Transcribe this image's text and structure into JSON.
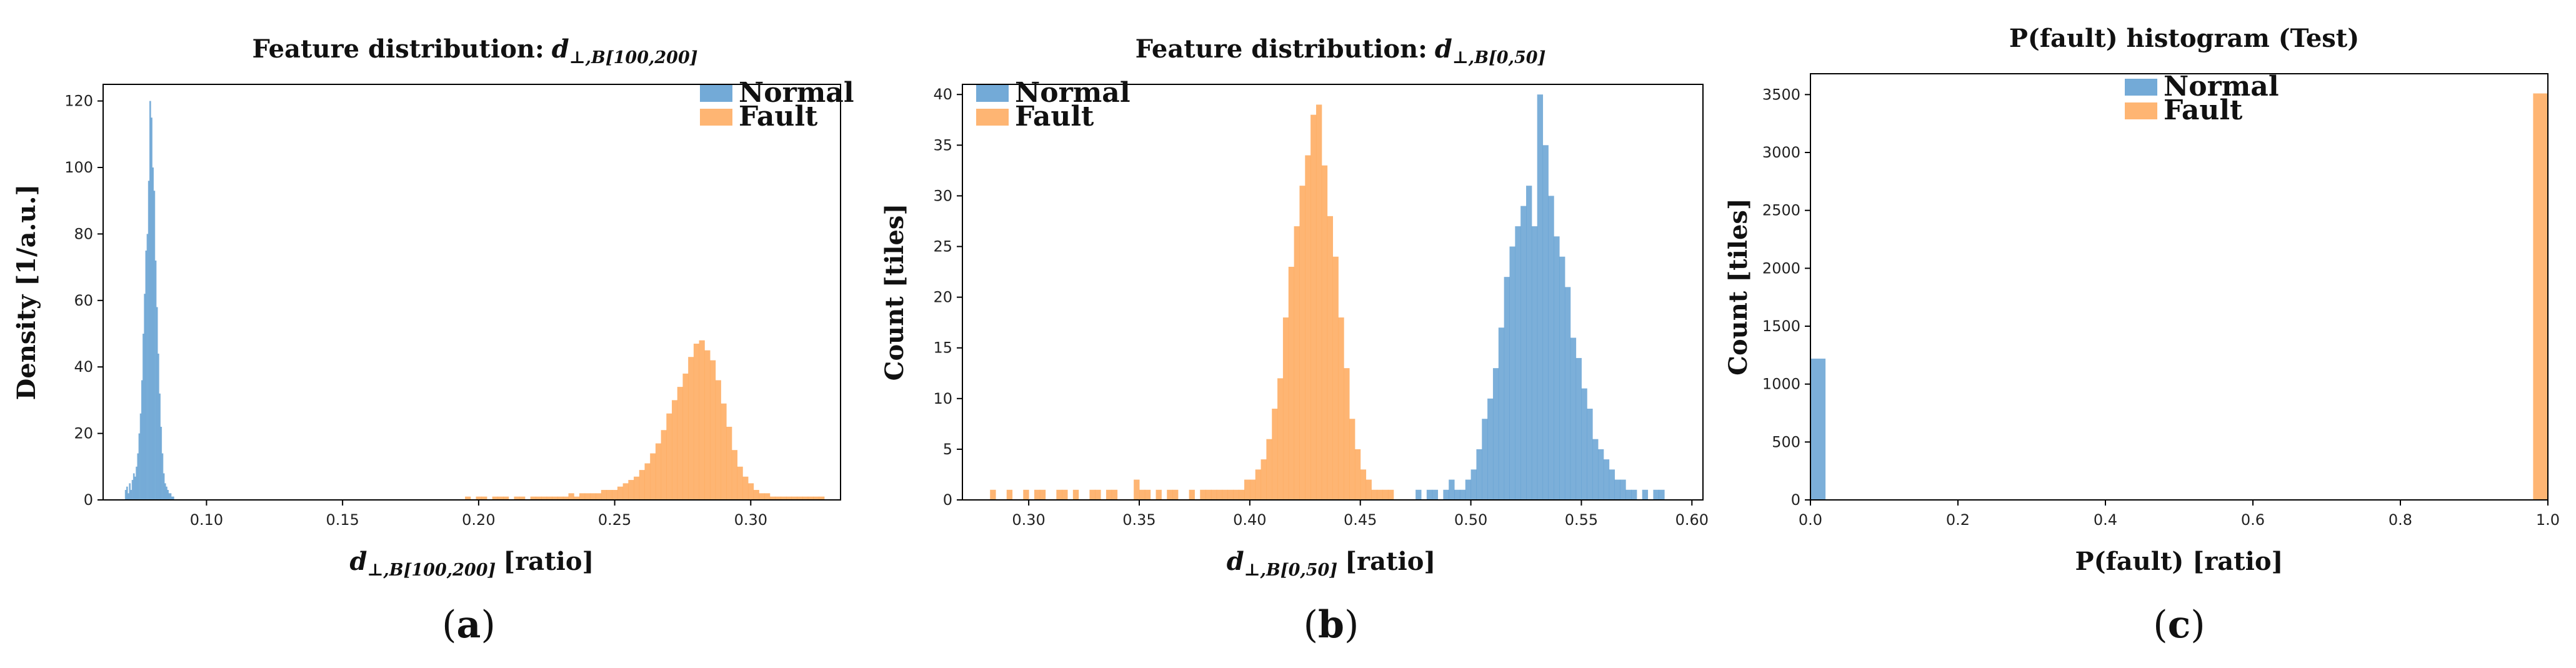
{
  "colors": {
    "normal": "#5b9bd0",
    "fault": "#fea85a",
    "normal_alpha": 0.8,
    "fault_alpha": 0.85
  },
  "chart_data": [
    {
      "type": "bar",
      "panel": "a",
      "title": "Feature distribution: d⊥,B[100,200]",
      "title_prefix": "Feature distribution:",
      "title_symbol": "d",
      "title_subscript": "⊥,B[100,200]",
      "xlabel": "d⊥,B[100,200] [ratio]",
      "xlabel_symbol": "d",
      "xlabel_subscript": "⊥,B[100,200]",
      "xlabel_suffix": "[ratio]",
      "ylabel": "Density [1/a.u.]",
      "caption_letter": "a",
      "xlim": [
        0.062,
        0.333
      ],
      "ylim": [
        0,
        125
      ],
      "xticks": [
        0.1,
        0.15,
        0.2,
        0.25,
        0.3
      ],
      "xtick_labels": [
        "0.10",
        "0.15",
        "0.20",
        "0.25",
        "0.30"
      ],
      "yticks": [
        0,
        20,
        40,
        60,
        80,
        100,
        120
      ],
      "ytick_labels": [
        "0",
        "20",
        "40",
        "60",
        "80",
        "100",
        "120"
      ],
      "legend_position": "top-right",
      "series": [
        {
          "name": "Normal",
          "color": "#5b9bd0",
          "bins": {
            "start": 0.07,
            "width": 0.0005
          },
          "values": [
            3,
            4,
            2,
            5,
            3,
            6,
            8,
            7,
            10,
            14,
            20,
            26,
            36,
            50,
            62,
            75,
            80,
            96,
            120,
            115,
            100,
            93,
            72,
            58,
            44,
            32,
            22,
            14,
            8,
            5,
            4,
            3,
            2,
            2,
            1,
            1
          ]
        },
        {
          "name": "Fault",
          "color": "#fea85a",
          "bins": {
            "start": 0.195,
            "width": 0.002
          },
          "values": [
            1,
            0,
            1,
            1,
            0,
            1,
            1,
            1,
            0,
            1,
            1,
            0,
            1,
            1,
            1,
            1,
            1,
            1,
            1,
            2,
            1,
            2,
            2,
            2,
            2,
            3,
            3,
            3,
            4,
            5,
            6,
            7,
            9,
            11,
            14,
            17,
            21,
            26,
            30,
            34,
            38,
            43,
            47,
            48,
            45,
            42,
            36,
            29,
            22,
            15,
            10,
            7,
            5,
            3,
            2,
            2,
            1,
            1,
            1,
            1,
            1,
            1,
            1,
            1,
            1,
            1
          ]
        }
      ]
    },
    {
      "type": "bar",
      "panel": "b",
      "title": "Feature distribution: d⊥,B[0,50]",
      "title_prefix": "Feature distribution:",
      "title_symbol": "d",
      "title_subscript": "⊥,B[0,50]",
      "xlabel": "d⊥,B[0,50] [ratio]",
      "xlabel_symbol": "d",
      "xlabel_subscript": "⊥,B[0,50]",
      "xlabel_suffix": "[ratio]",
      "ylabel": "Count [tiles]",
      "caption_letter": "b",
      "xlim": [
        0.27,
        0.605
      ],
      "ylim": [
        0,
        41
      ],
      "xticks": [
        0.3,
        0.35,
        0.4,
        0.45,
        0.5,
        0.55,
        0.6
      ],
      "xtick_labels": [
        "0.30",
        "0.35",
        "0.40",
        "0.45",
        "0.50",
        "0.55",
        "0.60"
      ],
      "yticks": [
        0,
        5,
        10,
        15,
        20,
        25,
        30,
        35,
        40
      ],
      "ytick_labels": [
        "0",
        "5",
        "10",
        "15",
        "20",
        "25",
        "30",
        "35",
        "40"
      ],
      "legend_position": "top-left",
      "series": [
        {
          "name": "Normal",
          "color": "#5b9bd0",
          "bins": {
            "start": 0.475,
            "width": 0.0025
          },
          "values": [
            1,
            0,
            1,
            1,
            0,
            1,
            2,
            1,
            1,
            2,
            3,
            5,
            8,
            10,
            13,
            17,
            22,
            25,
            27,
            29,
            31,
            27,
            40,
            35,
            30,
            26,
            24,
            21,
            16,
            14,
            11,
            9,
            6,
            5,
            4,
            3,
            2,
            2,
            1,
            1,
            0,
            1,
            0,
            1,
            1
          ]
        },
        {
          "name": "Fault",
          "color": "#fea85a",
          "bins": {
            "start": 0.28,
            "width": 0.0025
          },
          "values": [
            0,
            1,
            0,
            0,
            1,
            0,
            0,
            1,
            0,
            1,
            1,
            0,
            0,
            1,
            1,
            0,
            1,
            0,
            0,
            1,
            1,
            0,
            1,
            1,
            0,
            0,
            0,
            2,
            1,
            1,
            0,
            1,
            0,
            1,
            1,
            0,
            0,
            1,
            0,
            1,
            1,
            1,
            1,
            1,
            1,
            1,
            1,
            2,
            2,
            3,
            4,
            6,
            9,
            12,
            18,
            23,
            27,
            31,
            34,
            38,
            39,
            33,
            28,
            24,
            18,
            13,
            8,
            5,
            3,
            2,
            1,
            1,
            1,
            1
          ]
        }
      ]
    },
    {
      "type": "bar",
      "panel": "c",
      "title": "P(fault) histogram (Test)",
      "xlabel": "P(fault) [ratio]",
      "ylabel": "Count [tiles]",
      "caption_letter": "c",
      "xlim": [
        0.0,
        1.0
      ],
      "ylim": [
        0,
        3680
      ],
      "xticks": [
        0.0,
        0.2,
        0.4,
        0.6,
        0.8,
        1.0
      ],
      "xtick_labels": [
        "0.0",
        "0.2",
        "0.4",
        "0.6",
        "0.8",
        "1.0"
      ],
      "yticks": [
        0,
        500,
        1000,
        1500,
        2000,
        2500,
        3000,
        3500
      ],
      "ytick_labels": [
        "0",
        "500",
        "1000",
        "1500",
        "2000",
        "2500",
        "3000",
        "3500"
      ],
      "legend_position": "top-center",
      "series": [
        {
          "name": "Normal",
          "color": "#5b9bd0",
          "bins": {
            "start": 0.0,
            "width": 0.02
          },
          "values": [
            1220
          ]
        },
        {
          "name": "Fault",
          "color": "#fea85a",
          "bins": {
            "start": 0.98,
            "width": 0.02
          },
          "values": [
            3510
          ]
        }
      ]
    }
  ]
}
